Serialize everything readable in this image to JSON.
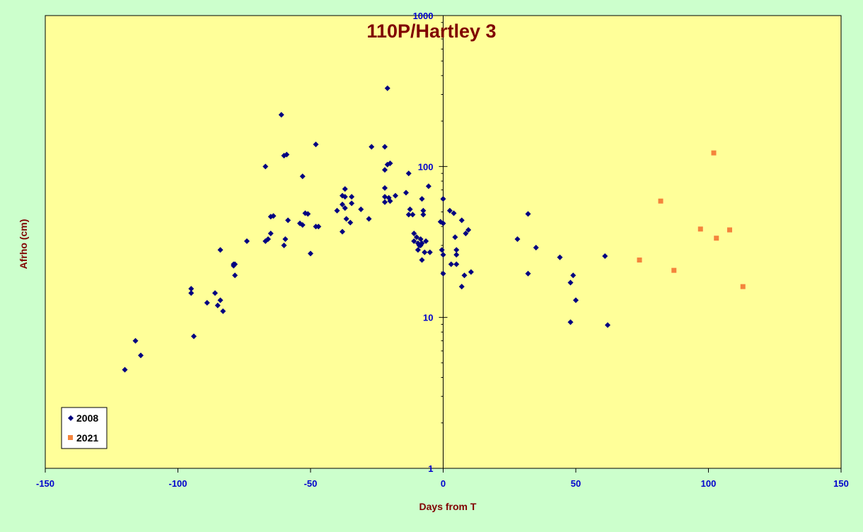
{
  "chart_data": {
    "type": "scatter",
    "title": "110P/Hartley 3",
    "xlabel": "Days from T",
    "ylabel": "Afrho (cm)",
    "xlim": [
      -150,
      150
    ],
    "ylim": [
      1,
      1000
    ],
    "yscale": "log",
    "x_ticks": [
      "-150",
      "-100",
      "-50",
      "0",
      "50",
      "100",
      "150"
    ],
    "y_ticks": [
      "1",
      "10",
      "100",
      "1000"
    ],
    "grid": false,
    "legend_position": "bottom-left",
    "colors": {
      "outer_background": "#ccffcc",
      "plot_background": "#ffff99",
      "series_2008": "#000080",
      "series_2021": "#f4843c"
    },
    "series": [
      {
        "name": "2008",
        "marker": "diamond",
        "points": [
          [
            -120,
            4.5
          ],
          [
            -116,
            7
          ],
          [
            -114,
            5.6
          ],
          [
            -95,
            15.5
          ],
          [
            -95,
            14.5
          ],
          [
            -94,
            7.5
          ],
          [
            -89,
            12.5
          ],
          [
            -86,
            14.5
          ],
          [
            -85,
            12
          ],
          [
            -84,
            13
          ],
          [
            -84,
            28
          ],
          [
            -83,
            11
          ],
          [
            -79,
            22
          ],
          [
            -79,
            22.5
          ],
          [
            -78.5,
            19
          ],
          [
            -78.5,
            22.5
          ],
          [
            -74,
            32
          ],
          [
            -67,
            100
          ],
          [
            -67,
            32
          ],
          [
            -66,
            33
          ],
          [
            -65,
            36
          ],
          [
            -65,
            46.5
          ],
          [
            -64,
            47
          ],
          [
            -61,
            220
          ],
          [
            -60,
            118
          ],
          [
            -60,
            30
          ],
          [
            -59.5,
            33
          ],
          [
            -59,
            120
          ],
          [
            -58.5,
            44
          ],
          [
            -54,
            42
          ],
          [
            -53,
            41
          ],
          [
            -53,
            86
          ],
          [
            -52,
            49
          ],
          [
            -51,
            48.5
          ],
          [
            -50,
            26.5
          ],
          [
            -48,
            140
          ],
          [
            -48,
            40
          ],
          [
            -47,
            40
          ],
          [
            -40,
            51
          ],
          [
            -38,
            56
          ],
          [
            -38,
            64
          ],
          [
            -38,
            37
          ],
          [
            -37,
            71
          ],
          [
            -37,
            63
          ],
          [
            -37,
            53
          ],
          [
            -36.5,
            45
          ],
          [
            -35,
            42.5
          ],
          [
            -34.5,
            63
          ],
          [
            -34.5,
            57
          ],
          [
            -31,
            52
          ],
          [
            -28,
            45
          ],
          [
            -27,
            135
          ],
          [
            -22,
            135
          ],
          [
            -22,
            95
          ],
          [
            -22,
            72
          ],
          [
            -22,
            63
          ],
          [
            -22,
            58
          ],
          [
            -21,
            103
          ],
          [
            -21,
            330
          ],
          [
            -20.5,
            62
          ],
          [
            -20,
            105
          ],
          [
            -20,
            59
          ],
          [
            -18,
            64
          ],
          [
            -14,
            67
          ],
          [
            -13,
            90
          ],
          [
            -13,
            48
          ],
          [
            -12.5,
            52
          ],
          [
            -11.5,
            48
          ],
          [
            -11,
            36
          ],
          [
            -11,
            32
          ],
          [
            -10,
            34
          ],
          [
            -9.5,
            31
          ],
          [
            -9.5,
            28
          ],
          [
            -9,
            30
          ],
          [
            -8.5,
            33
          ],
          [
            -8.5,
            30
          ],
          [
            -8,
            31
          ],
          [
            -8,
            61
          ],
          [
            -8,
            24
          ],
          [
            -7.5,
            51
          ],
          [
            -7.5,
            48
          ],
          [
            -7,
            27
          ],
          [
            -6.5,
            32
          ],
          [
            -5.5,
            74
          ],
          [
            -5,
            27
          ],
          [
            -1,
            43
          ],
          [
            -0.5,
            28
          ],
          [
            0,
            61
          ],
          [
            0,
            42
          ],
          [
            0,
            26
          ],
          [
            0,
            19.5
          ],
          [
            2.5,
            51
          ],
          [
            3,
            22.5
          ],
          [
            4,
            49
          ],
          [
            4.5,
            34
          ],
          [
            5,
            28
          ],
          [
            5,
            26
          ],
          [
            5,
            22.5
          ],
          [
            7,
            44
          ],
          [
            7,
            16
          ],
          [
            8,
            19
          ],
          [
            8.5,
            36
          ],
          [
            9.5,
            38
          ],
          [
            10.5,
            20
          ],
          [
            28,
            33
          ],
          [
            32,
            48.5
          ],
          [
            32,
            19.5
          ],
          [
            35,
            29
          ],
          [
            44,
            25
          ],
          [
            48,
            9.3
          ],
          [
            48,
            17
          ],
          [
            49,
            19
          ],
          [
            50,
            13
          ],
          [
            61,
            25.5
          ],
          [
            62,
            8.9
          ]
        ]
      },
      {
        "name": "2021",
        "marker": "square",
        "points": [
          [
            74,
            24
          ],
          [
            82,
            59
          ],
          [
            87,
            20.5
          ],
          [
            97,
            38.5
          ],
          [
            102,
            123
          ],
          [
            103,
            33.5
          ],
          [
            108,
            38
          ],
          [
            113,
            16
          ]
        ]
      }
    ]
  }
}
